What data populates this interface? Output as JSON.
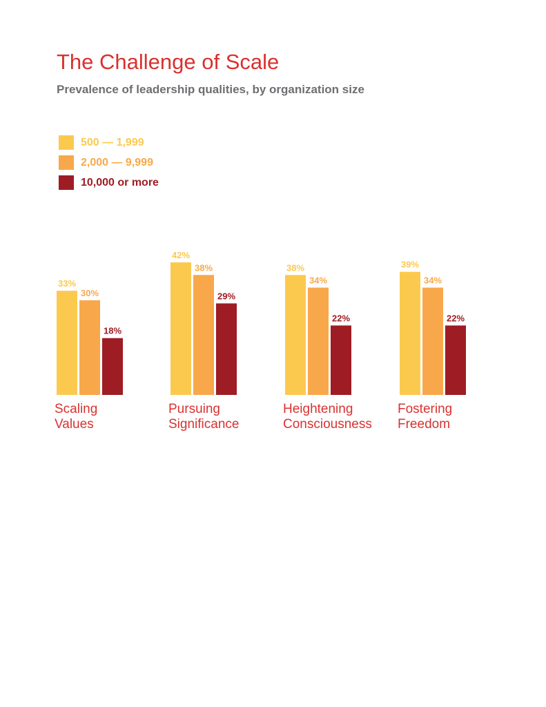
{
  "title": "The Challenge of Scale",
  "subtitle": "Prevalence of leadership qualities,  by organization size",
  "colors": {
    "title": "#d9312f",
    "subtitle": "#6d6e71",
    "category_label": "#d9312f"
  },
  "legend": [
    {
      "label": "500 — 1,999",
      "color": "#fcc94f"
    },
    {
      "label": "2,000 — 9,999",
      "color": "#f8a84a"
    },
    {
      "label": "10,000 or more",
      "color": "#9e1c23"
    }
  ],
  "chart_data": {
    "type": "bar",
    "title": "The Challenge of Scale",
    "subtitle": "Prevalence of leadership qualities,  by organization size",
    "categories": [
      [
        "Scaling",
        "Values"
      ],
      [
        "Pursuing",
        "Significance"
      ],
      [
        "Heightening",
        "Consciousness"
      ],
      [
        "Fostering",
        "Freedom"
      ]
    ],
    "series": [
      {
        "name": "500 — 1,999",
        "values": [
          33,
          42,
          38,
          39
        ],
        "labels": [
          "33%",
          "42%",
          "38%",
          "39%"
        ]
      },
      {
        "name": "2,000 — 9,999",
        "values": [
          30,
          38,
          34,
          34
        ],
        "labels": [
          "30%",
          "38%",
          "34%",
          "34%"
        ]
      },
      {
        "name": "10,000 or more",
        "values": [
          18,
          29,
          22,
          22
        ],
        "labels": [
          "18%",
          "29%",
          "22%",
          "22%"
        ]
      }
    ],
    "ylim": [
      0,
      42
    ],
    "grid": false,
    "legend_position": "top-left"
  }
}
